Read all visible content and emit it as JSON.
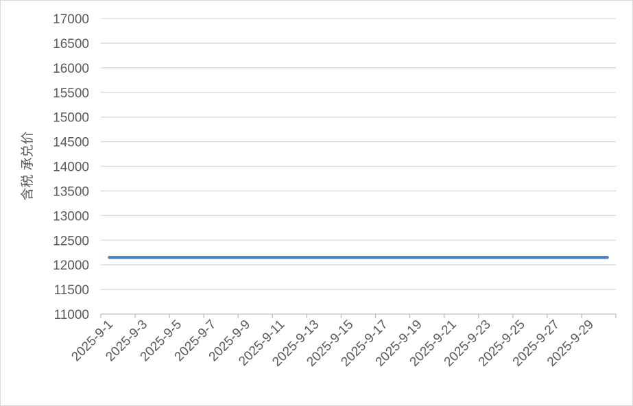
{
  "chart_data": {
    "type": "line",
    "title": "",
    "xlabel": "",
    "ylabel": "含税 承兑价",
    "ylim": [
      11000,
      17000
    ],
    "y_ticks": [
      11000,
      11500,
      12000,
      12500,
      13000,
      13500,
      14000,
      14500,
      15000,
      15500,
      16000,
      16500,
      17000
    ],
    "grid": true,
    "legend": "none",
    "x": [
      "2025-9-1",
      "2025-9-2",
      "2025-9-3",
      "2025-9-4",
      "2025-9-5",
      "2025-9-6",
      "2025-9-7",
      "2025-9-8",
      "2025-9-9",
      "2025-9-10",
      "2025-9-11",
      "2025-9-12",
      "2025-9-13",
      "2025-9-14",
      "2025-9-15",
      "2025-9-16",
      "2025-9-17",
      "2025-9-18",
      "2025-9-19",
      "2025-9-20",
      "2025-9-21",
      "2025-9-22",
      "2025-9-23",
      "2025-9-24",
      "2025-9-25",
      "2025-9-26",
      "2025-9-27",
      "2025-9-28",
      "2025-9-29",
      "2025-9-30"
    ],
    "x_tick_labels": [
      "2025-9-1",
      "2025-9-3",
      "2025-9-5",
      "2025-9-7",
      "2025-9-9",
      "2025-9-11",
      "2025-9-13",
      "2025-9-15",
      "2025-9-17",
      "2025-9-19",
      "2025-9-21",
      "2025-9-23",
      "2025-9-25",
      "2025-9-27",
      "2025-9-29"
    ],
    "series": [
      {
        "values": [
          12150,
          12150,
          12150,
          12150,
          12150,
          12150,
          12150,
          12150,
          12150,
          12150,
          12150,
          12150,
          12150,
          12150,
          12150,
          12150,
          12150,
          12150,
          12150,
          12150,
          12150,
          12150,
          12150,
          12150,
          12150,
          12150,
          12150,
          12150,
          12150,
          12150
        ],
        "color": "#4f81bd"
      }
    ]
  }
}
